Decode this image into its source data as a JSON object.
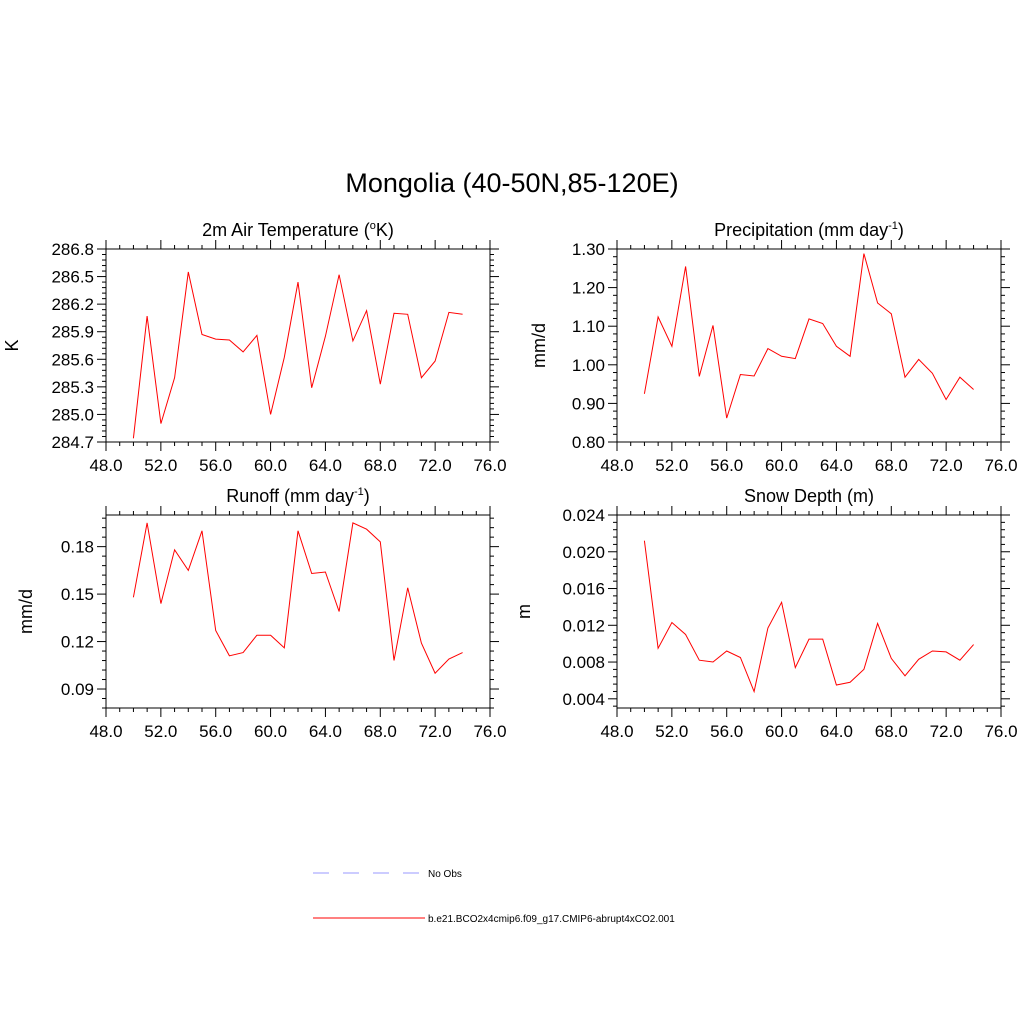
{
  "title": "Mongolia (40-50N,85-120E)",
  "colors": {
    "model": "#ff0000",
    "obs": "#9999ff",
    "axis": "#000000"
  },
  "legend": [
    {
      "label": "No Obs",
      "style": "dashed",
      "color": "#9999ff"
    },
    {
      "label": "b.e21.BCO2x4cmip6.f09_g17.CMIP6-abrupt4xCO2.001",
      "style": "solid",
      "color": "#ff0000"
    }
  ],
  "chart_data": [
    {
      "type": "line",
      "title": "2m Air Temperature (",
      "title_sup": "o",
      "title_after": "K)",
      "ylabel": "K",
      "xlim": [
        48,
        76
      ],
      "ylim": [
        284.7,
        286.8
      ],
      "xticks": [
        "48.0",
        "52.0",
        "56.0",
        "60.0",
        "64.0",
        "68.0",
        "72.0",
        "76.0"
      ],
      "yticks": [
        "284.7",
        "285.0",
        "285.3",
        "285.6",
        "285.9",
        "286.2",
        "286.5",
        "286.8"
      ],
      "x": [
        50,
        51,
        52,
        53,
        54,
        55,
        56,
        57,
        58,
        59,
        60,
        61,
        62,
        63,
        64,
        65,
        66,
        67,
        68,
        69,
        70,
        71,
        72,
        73,
        74
      ],
      "series": [
        {
          "name": "b.e21.BCO2x4cmip6.f09_g17.CMIP6-abrupt4xCO2.001",
          "values": [
            284.74,
            286.07,
            284.9,
            285.4,
            286.55,
            285.87,
            285.82,
            285.81,
            285.68,
            285.86,
            285.0,
            285.62,
            286.44,
            285.29,
            285.85,
            286.52,
            285.8,
            286.13,
            285.33,
            286.1,
            286.09,
            285.4,
            285.58,
            286.11,
            286.09
          ]
        }
      ]
    },
    {
      "type": "line",
      "title": "Precipitation (mm day",
      "title_sup": "-1",
      "title_after": ")",
      "ylabel": "mm/d",
      "xlim": [
        48,
        76
      ],
      "ylim": [
        0.8,
        1.3
      ],
      "xticks": [
        "48.0",
        "52.0",
        "56.0",
        "60.0",
        "64.0",
        "68.0",
        "72.0",
        "76.0"
      ],
      "yticks": [
        "0.80",
        "0.90",
        "1.00",
        "1.10",
        "1.20",
        "1.30"
      ],
      "x": [
        50,
        51,
        52,
        53,
        54,
        55,
        56,
        57,
        58,
        59,
        60,
        61,
        62,
        63,
        64,
        65,
        66,
        67,
        68,
        69,
        70,
        71,
        72,
        73,
        74
      ],
      "series": [
        {
          "name": "b.e21.BCO2x4cmip6.f09_g17.CMIP6-abrupt4xCO2.001",
          "values": [
            0.925,
            1.124,
            1.048,
            1.255,
            0.97,
            1.102,
            0.862,
            0.975,
            0.971,
            1.042,
            1.022,
            1.016,
            1.119,
            1.107,
            1.048,
            1.022,
            1.288,
            1.16,
            1.132,
            0.968,
            1.014,
            0.978,
            0.91,
            0.968,
            0.936
          ]
        }
      ]
    },
    {
      "type": "line",
      "title": "Runoff (mm day",
      "title_sup": "-1",
      "title_after": ")",
      "ylabel": "mm/d",
      "xlim": [
        48,
        76
      ],
      "ylim": [
        0.078,
        0.2
      ],
      "xticks": [
        "48.0",
        "52.0",
        "56.0",
        "60.0",
        "64.0",
        "68.0",
        "72.0",
        "76.0"
      ],
      "yticks": [
        "0.09",
        "0.12",
        "0.15",
        "0.18"
      ],
      "x": [
        50,
        51,
        52,
        53,
        54,
        55,
        56,
        57,
        58,
        59,
        60,
        61,
        62,
        63,
        64,
        65,
        66,
        67,
        68,
        69,
        70,
        71,
        72,
        73,
        74
      ],
      "series": [
        {
          "name": "b.e21.BCO2x4cmip6.f09_g17.CMIP6-abrupt4xCO2.001",
          "values": [
            0.148,
            0.195,
            0.144,
            0.178,
            0.165,
            0.19,
            0.127,
            0.111,
            0.113,
            0.124,
            0.124,
            0.116,
            0.19,
            0.163,
            0.164,
            0.139,
            0.195,
            0.191,
            0.183,
            0.108,
            0.154,
            0.119,
            0.1,
            0.109,
            0.113
          ]
        }
      ]
    },
    {
      "type": "line",
      "title": "Snow Depth (m)",
      "title_sup": "",
      "title_after": "",
      "ylabel": "m",
      "xlim": [
        48,
        76
      ],
      "ylim": [
        0.003,
        0.024
      ],
      "xticks": [
        "48.0",
        "52.0",
        "56.0",
        "60.0",
        "64.0",
        "68.0",
        "72.0",
        "76.0"
      ],
      "yticks": [
        "0.004",
        "0.008",
        "0.012",
        "0.016",
        "0.020",
        "0.024"
      ],
      "x": [
        50,
        51,
        52,
        53,
        54,
        55,
        56,
        57,
        58,
        59,
        60,
        61,
        62,
        63,
        64,
        65,
        66,
        67,
        68,
        69,
        70,
        71,
        72,
        73,
        74
      ],
      "series": [
        {
          "name": "b.e21.BCO2x4cmip6.f09_g17.CMIP6-abrupt4xCO2.001",
          "values": [
            0.0212,
            0.0095,
            0.0123,
            0.011,
            0.0082,
            0.008,
            0.0092,
            0.0085,
            0.0048,
            0.0117,
            0.0145,
            0.0074,
            0.0105,
            0.0105,
            0.0055,
            0.0058,
            0.0072,
            0.0122,
            0.0084,
            0.0065,
            0.0083,
            0.0092,
            0.0091,
            0.0082,
            0.0099
          ]
        }
      ]
    }
  ]
}
